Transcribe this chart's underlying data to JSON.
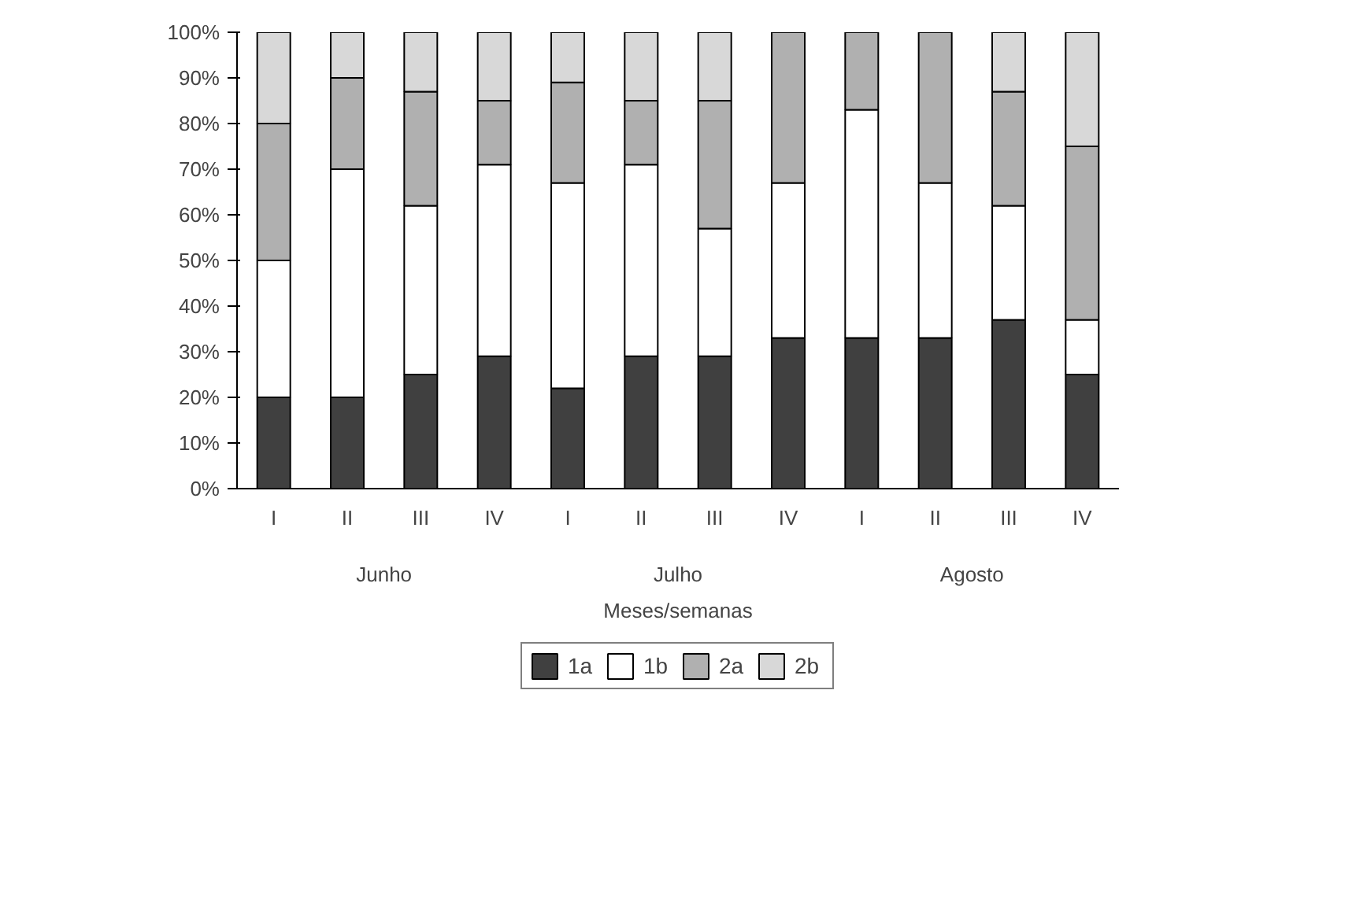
{
  "chart_data": {
    "type": "bar",
    "stacked": true,
    "xlabel": "Meses/semanas",
    "categories": [
      "I",
      "II",
      "III",
      "IV",
      "I",
      "II",
      "III",
      "IV",
      "I",
      "II",
      "III",
      "IV"
    ],
    "annotations": [
      "Junho",
      "Julho",
      "Agosto"
    ],
    "ylim": [
      0,
      100
    ],
    "yticks": [
      {
        "value": 0,
        "label": "0%"
      },
      {
        "value": 10,
        "label": "10%"
      },
      {
        "value": 20,
        "label": "20%"
      },
      {
        "value": 30,
        "label": "30%"
      },
      {
        "value": 40,
        "label": "40%"
      },
      {
        "value": 50,
        "label": "50%"
      },
      {
        "value": 60,
        "label": "60%"
      },
      {
        "value": 70,
        "label": "70%"
      },
      {
        "value": 80,
        "label": "80%"
      },
      {
        "value": 90,
        "label": "90%"
      },
      {
        "value": 100,
        "label": "100%"
      }
    ],
    "grid": false,
    "legend": "bottom",
    "series": [
      {
        "name": "1a",
        "color": "#404040",
        "values": [
          20,
          20,
          25,
          29,
          22,
          29,
          29,
          33,
          33,
          33,
          37,
          25
        ]
      },
      {
        "name": "1b",
        "color": "#ffffff",
        "values": [
          30,
          50,
          37,
          42,
          45,
          42,
          28,
          34,
          50,
          34,
          25,
          12
        ]
      },
      {
        "name": "2a",
        "color": "#b0b0b0",
        "values": [
          30,
          20,
          25,
          14,
          22,
          14,
          28,
          33,
          17,
          33,
          25,
          38
        ]
      },
      {
        "name": "2b",
        "color": "#d8d8d8",
        "values": [
          20,
          10,
          13,
          15,
          11,
          15,
          15,
          0,
          0,
          0,
          13,
          25
        ]
      }
    ]
  }
}
